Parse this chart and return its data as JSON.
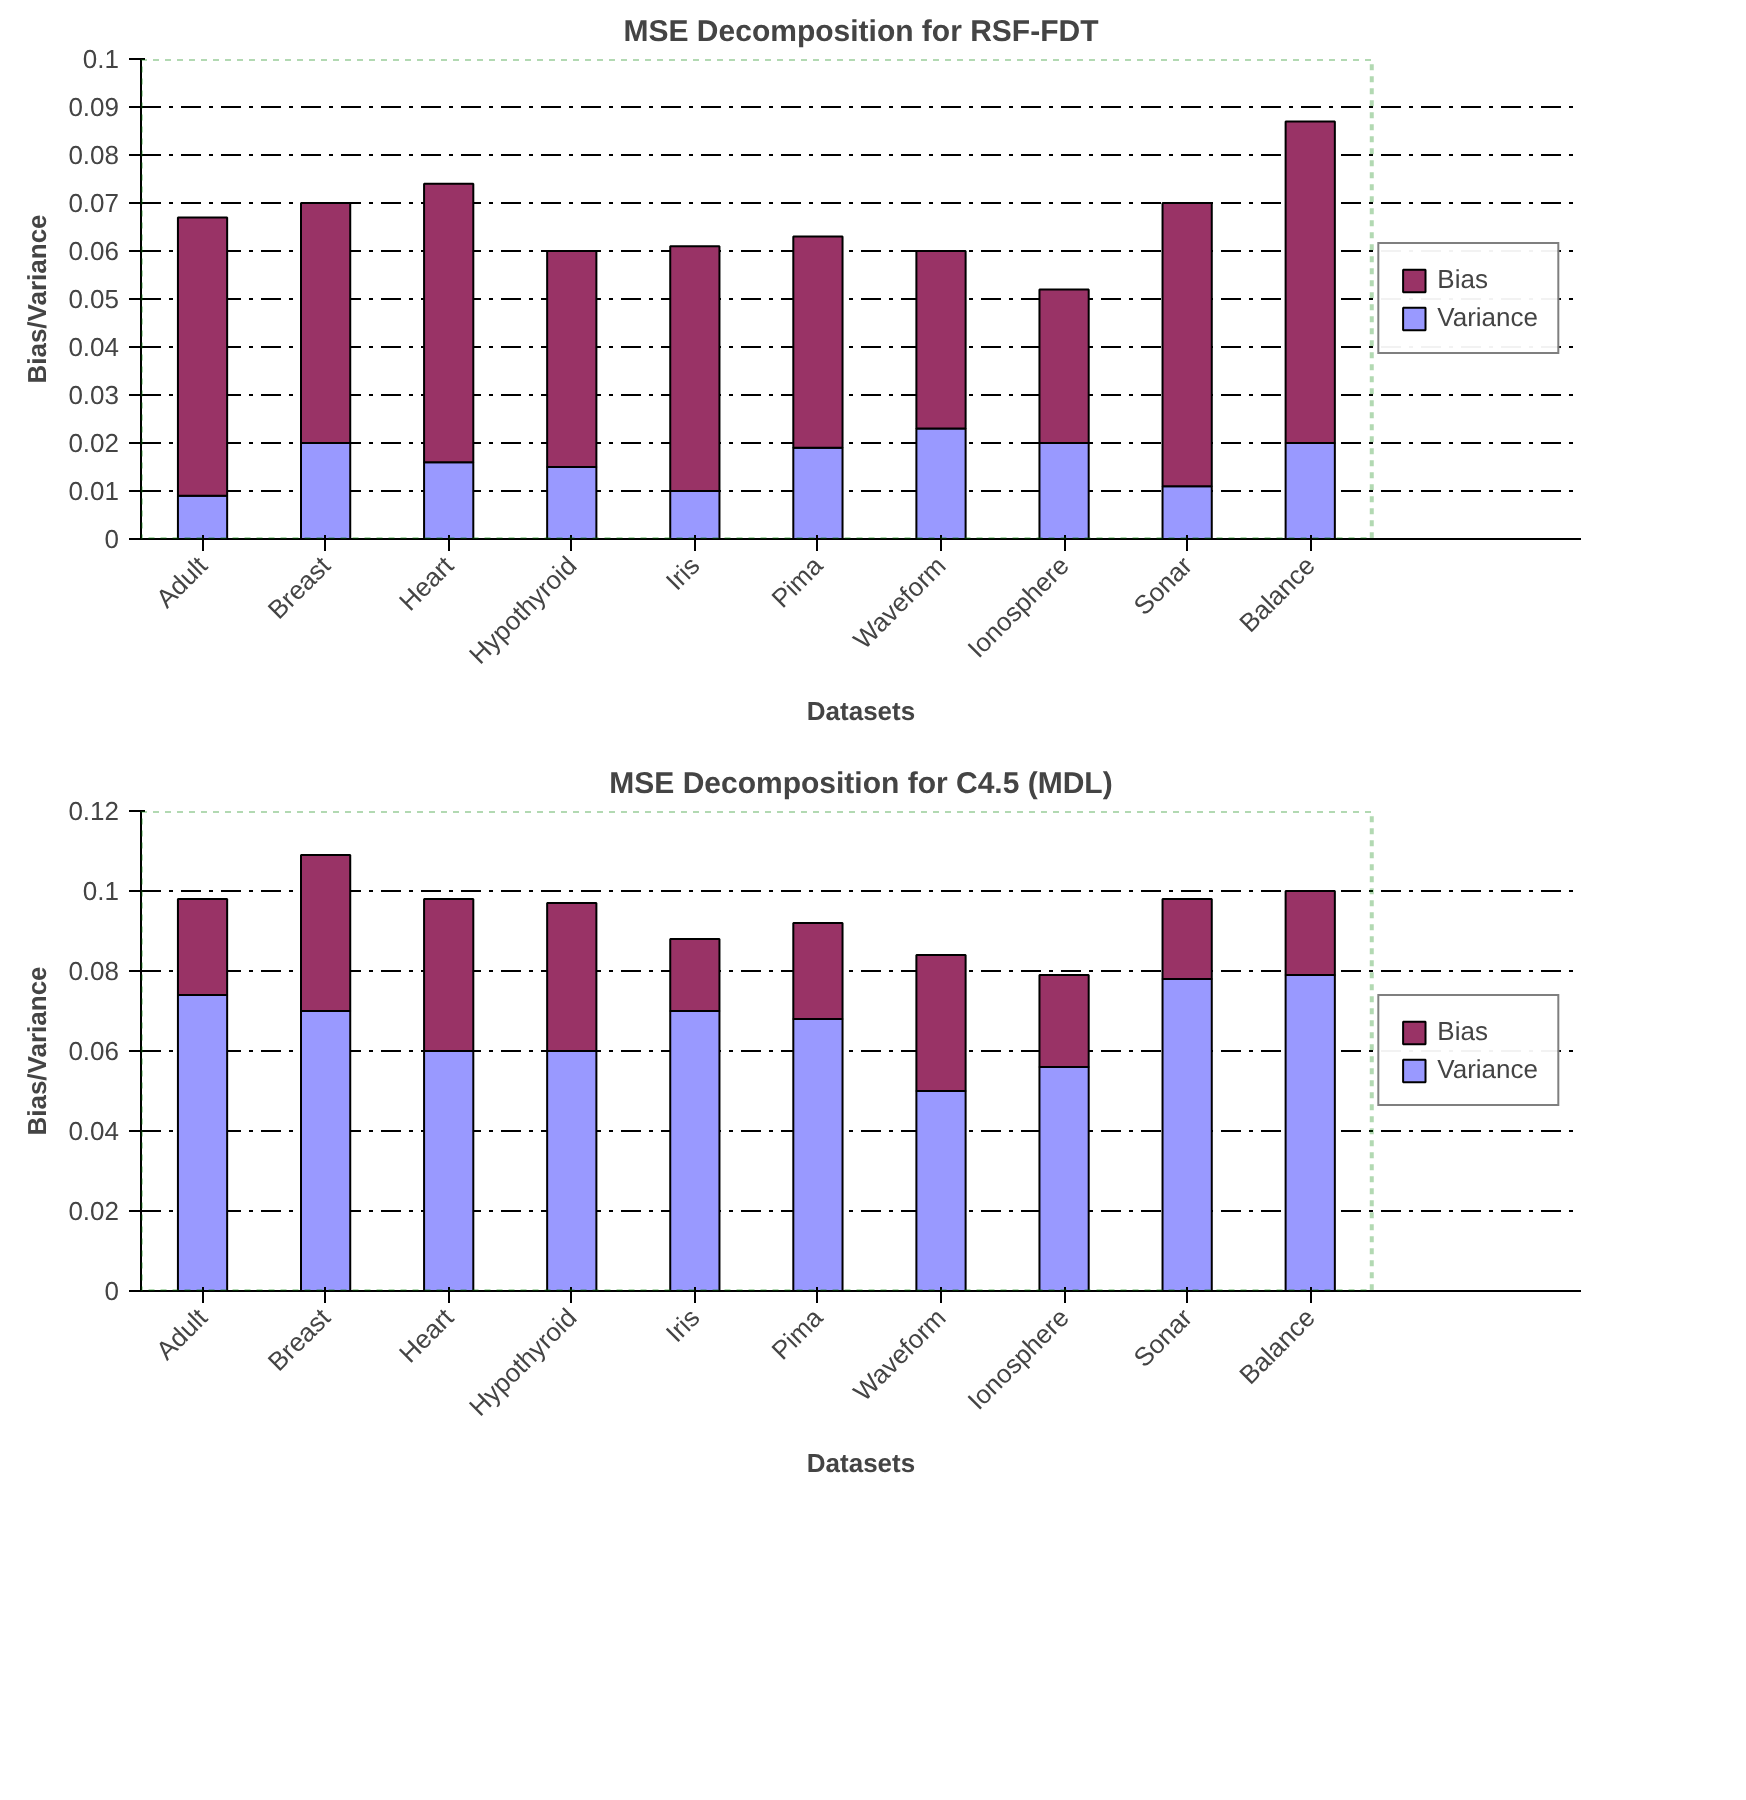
{
  "chart_data": [
    {
      "type": "bar",
      "stacked": true,
      "title": "MSE Decomposition for RSF-FDT",
      "xlabel": "Datasets",
      "ylabel": "Bias/Variance",
      "categories": [
        "Adult",
        "Breast",
        "Heart",
        "Hypothyroid",
        "Iris",
        "Pima",
        "Waveform",
        "Ionosphere",
        "Sonar",
        "Balance"
      ],
      "series": [
        {
          "name": "Variance",
          "color": "#9999ff",
          "values": [
            0.009,
            0.02,
            0.016,
            0.015,
            0.01,
            0.019,
            0.023,
            0.02,
            0.011,
            0.02
          ]
        },
        {
          "name": "Bias",
          "color": "#993366",
          "values": [
            0.058,
            0.05,
            0.058,
            0.045,
            0.051,
            0.044,
            0.037,
            0.032,
            0.059,
            0.067
          ]
        }
      ],
      "ylim": [
        0,
        0.1
      ],
      "yticks": [
        0,
        0.01,
        0.02,
        0.03,
        0.04,
        0.05,
        0.06,
        0.07,
        0.08,
        0.09,
        0.1
      ],
      "grid": "y",
      "legend": "right"
    },
    {
      "type": "bar",
      "stacked": true,
      "title": "MSE Decomposition for C4.5 (MDL)",
      "xlabel": "Datasets",
      "ylabel": "Bias/Variance",
      "categories": [
        "Adult",
        "Breast",
        "Heart",
        "Hypothyroid",
        "Iris",
        "Pima",
        "Waveform",
        "Ionosphere",
        "Sonar",
        "Balance"
      ],
      "series": [
        {
          "name": "Variance",
          "color": "#9999ff",
          "values": [
            0.074,
            0.07,
            0.06,
            0.06,
            0.07,
            0.068,
            0.05,
            0.056,
            0.078,
            0.079
          ]
        },
        {
          "name": "Bias",
          "color": "#993366",
          "values": [
            0.024,
            0.039,
            0.038,
            0.037,
            0.018,
            0.024,
            0.034,
            0.023,
            0.02,
            0.021
          ]
        }
      ],
      "ylim": [
        0,
        0.12
      ],
      "yticks": [
        0,
        0.02,
        0.04,
        0.06,
        0.08,
        0.1,
        0.12
      ],
      "grid": "y",
      "legend": "right"
    }
  ]
}
